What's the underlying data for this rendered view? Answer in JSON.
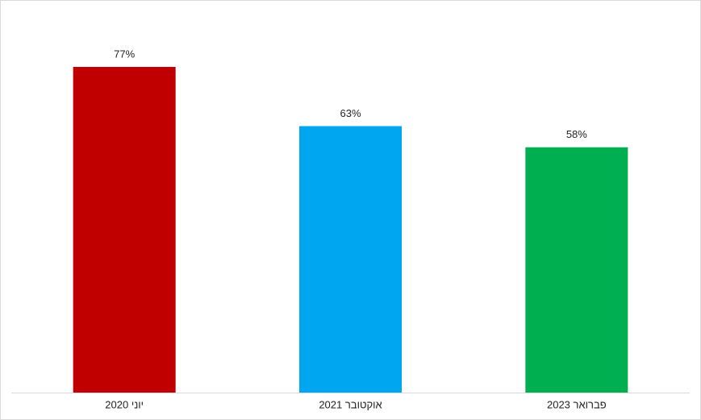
{
  "chart_data": {
    "type": "bar",
    "categories": [
      "יוני 2020",
      "אוקטובר 2021",
      "פברואר 2023"
    ],
    "values": [
      77,
      63,
      58
    ],
    "value_labels": [
      "77%",
      "63%",
      "58%"
    ],
    "colors": [
      "#c00000",
      "#00a6f0",
      "#00b050"
    ]
  }
}
